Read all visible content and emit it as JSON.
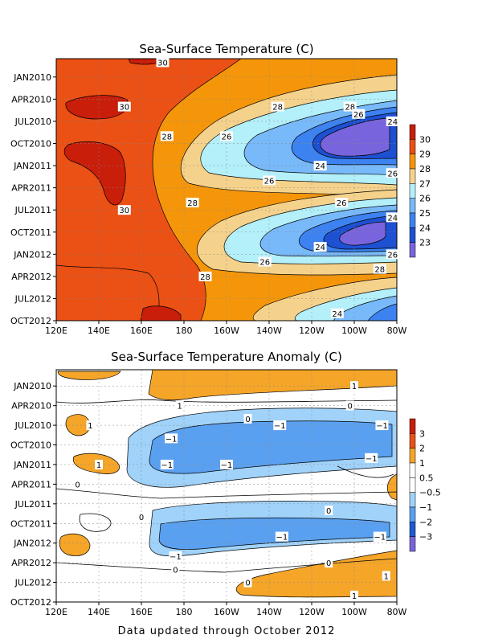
{
  "footer": "Data updated through October 2012",
  "chart_data": [
    {
      "type": "heatmap",
      "title": "Sea-Surface Temperature (C)",
      "x_tick_labels": [
        "120E",
        "140E",
        "160E",
        "180",
        "160W",
        "140W",
        "120W",
        "100W",
        "80W"
      ],
      "x_ticks_deg_east": [
        120,
        140,
        160,
        180,
        200,
        220,
        240,
        260,
        280
      ],
      "xlim_deg_east": [
        120,
        280
      ],
      "y_tick_labels": [
        "JAN2010",
        "APR2010",
        "JUL2010",
        "OCT2010",
        "JAN2011",
        "APR2011",
        "JUL2011",
        "OCT2011",
        "JAN2012",
        "APR2012",
        "JUL2012",
        "OCT2012"
      ],
      "y_ticks": [
        "2010-01",
        "2010-04",
        "2010-07",
        "2010-10",
        "2011-01",
        "2011-04",
        "2011-07",
        "2011-10",
        "2012-01",
        "2012-04",
        "2012-07",
        "2012-10"
      ],
      "y_axis_order": "top-to-bottom",
      "grid": true,
      "colorbar": {
        "placement": "right",
        "labels": [
          "30",
          "29",
          "28",
          "27",
          "26",
          "25",
          "24",
          "23"
        ],
        "colors": [
          "#c81e0a",
          "#eb5014",
          "#f5960a",
          "#f5d28c",
          "#b4f0fa",
          "#78b9fa",
          "#3c82f0",
          "#1e50d2",
          "#7864dc"
        ]
      },
      "contour_labels": [
        {
          "text": "30",
          "lon": 170,
          "t": "2009-11"
        },
        {
          "text": "30",
          "lon": 152,
          "t": "2010-05"
        },
        {
          "text": "28",
          "lon": 224,
          "t": "2010-05"
        },
        {
          "text": "28",
          "lon": 258,
          "t": "2010-05"
        },
        {
          "text": "26",
          "lon": 262,
          "t": "2010-06"
        },
        {
          "text": "24",
          "lon": 278,
          "t": "2010-07"
        },
        {
          "text": "26",
          "lon": 200,
          "t": "2010-09"
        },
        {
          "text": "28",
          "lon": 172,
          "t": "2010-09"
        },
        {
          "text": "24",
          "lon": 244,
          "t": "2011-01"
        },
        {
          "text": "26",
          "lon": 278,
          "t": "2011-02"
        },
        {
          "text": "26",
          "lon": 220,
          "t": "2011-03"
        },
        {
          "text": "28",
          "lon": 184,
          "t": "2011-06"
        },
        {
          "text": "26",
          "lon": 254,
          "t": "2011-06"
        },
        {
          "text": "30",
          "lon": 152,
          "t": "2011-07"
        },
        {
          "text": "24",
          "lon": 278,
          "t": "2011-08"
        },
        {
          "text": "24",
          "lon": 244,
          "t": "2011-12"
        },
        {
          "text": "26",
          "lon": 278,
          "t": "2012-01"
        },
        {
          "text": "26",
          "lon": 218,
          "t": "2012-02"
        },
        {
          "text": "28",
          "lon": 272,
          "t": "2012-03"
        },
        {
          "text": "28",
          "lon": 190,
          "t": "2012-04"
        },
        {
          "text": "24",
          "lon": 252,
          "t": "2012-09"
        }
      ]
    },
    {
      "type": "heatmap",
      "title": "Sea-Surface Temperature Anomaly (C)",
      "x_tick_labels": [
        "120E",
        "140E",
        "160E",
        "180",
        "160W",
        "140W",
        "120W",
        "100W",
        "80W"
      ],
      "x_ticks_deg_east": [
        120,
        140,
        160,
        180,
        200,
        220,
        240,
        260,
        280
      ],
      "xlim_deg_east": [
        120,
        280
      ],
      "y_tick_labels": [
        "JAN2010",
        "APR2010",
        "JUL2010",
        "OCT2010",
        "JAN2011",
        "APR2011",
        "JUL2011",
        "OCT2011",
        "JAN2012",
        "APR2012",
        "JUL2012",
        "OCT2012"
      ],
      "y_ticks": [
        "2010-01",
        "2010-04",
        "2010-07",
        "2010-10",
        "2011-01",
        "2011-04",
        "2011-07",
        "2011-10",
        "2012-01",
        "2012-04",
        "2012-07",
        "2012-10"
      ],
      "y_axis_order": "top-to-bottom",
      "grid": true,
      "colorbar": {
        "placement": "right",
        "labels": [
          "3",
          "2",
          "1",
          "0.5",
          "−0.5",
          "−1",
          "−2",
          "−3"
        ],
        "colors": [
          "#c81e0a",
          "#eb5014",
          "#f5a528",
          "#ffffff",
          "#ffffff",
          "#a0d2fa",
          "#5aa0f0",
          "#1e5ad2",
          "#7864dc"
        ]
      },
      "contour_labels": [
        {
          "text": "1",
          "lon": 260,
          "t": "2010-01"
        },
        {
          "text": "1",
          "lon": 178,
          "t": "2010-04"
        },
        {
          "text": "0",
          "lon": 210,
          "t": "2010-06"
        },
        {
          "text": "0",
          "lon": 258,
          "t": "2010-04"
        },
        {
          "text": "1",
          "lon": 136,
          "t": "2010-07"
        },
        {
          "text": "−1",
          "lon": 225,
          "t": "2010-07"
        },
        {
          "text": "−1",
          "lon": 273,
          "t": "2010-07"
        },
        {
          "text": "−1",
          "lon": 174,
          "t": "2010-09"
        },
        {
          "text": "1",
          "lon": 140,
          "t": "2011-01"
        },
        {
          "text": "−1",
          "lon": 172,
          "t": "2011-01"
        },
        {
          "text": "−1",
          "lon": 200,
          "t": "2011-01"
        },
        {
          "text": "−1",
          "lon": 268,
          "t": "2010-12"
        },
        {
          "text": "0",
          "lon": 130,
          "t": "2011-04"
        },
        {
          "text": "0",
          "lon": 160,
          "t": "2011-09"
        },
        {
          "text": "0",
          "lon": 248,
          "t": "2011-08"
        },
        {
          "text": "−1",
          "lon": 226,
          "t": "2011-12"
        },
        {
          "text": "−1",
          "lon": 272,
          "t": "2011-12"
        },
        {
          "text": "−1",
          "lon": 176,
          "t": "2012-03"
        },
        {
          "text": "0",
          "lon": 176,
          "t": "2012-05"
        },
        {
          "text": "0",
          "lon": 248,
          "t": "2012-04"
        },
        {
          "text": "0",
          "lon": 210,
          "t": "2012-07"
        },
        {
          "text": "1",
          "lon": 275,
          "t": "2012-06"
        },
        {
          "text": "1",
          "lon": 260,
          "t": "2012-09"
        }
      ]
    }
  ]
}
